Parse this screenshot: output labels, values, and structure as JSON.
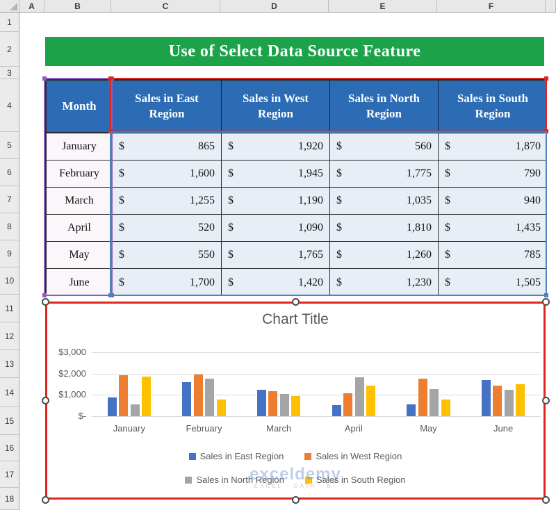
{
  "sheet": {
    "column_headers": [
      "A",
      "B",
      "C",
      "D",
      "E",
      "F"
    ],
    "row_headers": [
      "1",
      "2",
      "3",
      "4",
      "5",
      "6",
      "7",
      "8",
      "9",
      "10",
      "11",
      "12",
      "13",
      "14",
      "15",
      "16",
      "17",
      "18"
    ]
  },
  "banner": {
    "title": "Use of Select Data Source Feature",
    "bg_color": "#1ca34a"
  },
  "table": {
    "month_header": "Month",
    "series_headers": [
      "Sales in East Region",
      "Sales in West Region",
      "Sales in North Region",
      "Sales in South Region"
    ],
    "currency": "$",
    "header_bg": "#2b6cb5",
    "rows": [
      {
        "month": "January",
        "values": [
          "865",
          "1,920",
          "560",
          "1,870"
        ]
      },
      {
        "month": "February",
        "values": [
          "1,600",
          "1,945",
          "1,775",
          "790"
        ]
      },
      {
        "month": "March",
        "values": [
          "1,255",
          "1,190",
          "1,035",
          "940"
        ]
      },
      {
        "month": "April",
        "values": [
          "520",
          "1,090",
          "1,810",
          "1,435"
        ]
      },
      {
        "month": "May",
        "values": [
          "550",
          "1,765",
          "1,260",
          "785"
        ]
      },
      {
        "month": "June",
        "values": [
          "1,700",
          "1,420",
          "1,230",
          "1,505"
        ]
      }
    ],
    "selection_colors": {
      "categories": "#8f5bbd",
      "series_names": "#e0261c",
      "values": "#4f81bd"
    }
  },
  "chart_data": {
    "type": "bar",
    "title": "Chart Title",
    "categories": [
      "January",
      "February",
      "March",
      "April",
      "May",
      "June"
    ],
    "series": [
      {
        "name": "Sales in East Region",
        "color": "#4472c4",
        "values": [
          865,
          1600,
          1255,
          520,
          550,
          1700
        ]
      },
      {
        "name": "Sales in West Region",
        "color": "#ed7d31",
        "values": [
          1920,
          1945,
          1190,
          1090,
          1765,
          1420
        ]
      },
      {
        "name": "Sales in North Region",
        "color": "#a5a5a5",
        "values": [
          560,
          1775,
          1035,
          1810,
          1260,
          1230
        ]
      },
      {
        "name": "Sales in South Region",
        "color": "#ffc000",
        "values": [
          1870,
          790,
          940,
          1435,
          785,
          1505
        ]
      }
    ],
    "ylim": [
      0,
      3000
    ],
    "ytick_labels": [
      "$3,000",
      "$2,000",
      "$1,000",
      "$-"
    ],
    "grid": true,
    "legend_position": "bottom",
    "selection_border_color": "#e0261c"
  },
  "watermark": {
    "brand": "exceldemy",
    "tagline": "EXCEL · DATA · BI"
  }
}
